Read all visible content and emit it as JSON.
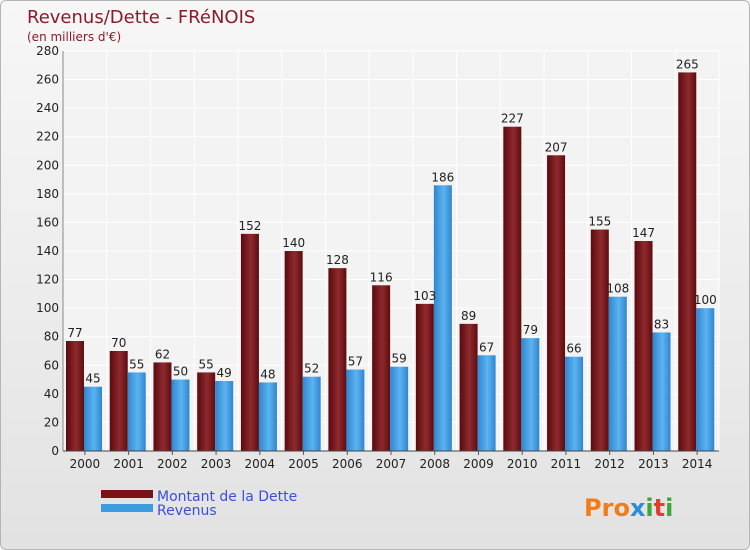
{
  "chart_data": {
    "type": "bar",
    "title": "Revenus/Dette - FRéNOIS",
    "subtitle": "(en milliers d'€)",
    "categories": [
      "2000",
      "2001",
      "2002",
      "2003",
      "2004",
      "2005",
      "2006",
      "2007",
      "2008",
      "2009",
      "2010",
      "2011",
      "2012",
      "2013",
      "2014"
    ],
    "series": [
      {
        "name": "Montant de la Dette",
        "color": "#7a1216",
        "values": [
          77,
          70,
          62,
          55,
          152,
          140,
          128,
          116,
          103,
          89,
          227,
          207,
          155,
          147,
          265
        ]
      },
      {
        "name": "Revenus",
        "color": "#3d9be0",
        "values": [
          45,
          55,
          50,
          49,
          48,
          52,
          57,
          59,
          186,
          67,
          79,
          66,
          108,
          83,
          100
        ]
      }
    ],
    "ylim": [
      0,
      280
    ],
    "yticks": [
      0,
      20,
      40,
      60,
      80,
      100,
      120,
      140,
      160,
      180,
      200,
      220,
      240,
      260,
      280
    ],
    "grid": true,
    "legend": "bottom-left"
  },
  "logo": {
    "text": "Proxiti",
    "colors": [
      "#f07d1a",
      "#2a8fd6",
      "#3aa83a",
      "#e63c2e"
    ]
  }
}
